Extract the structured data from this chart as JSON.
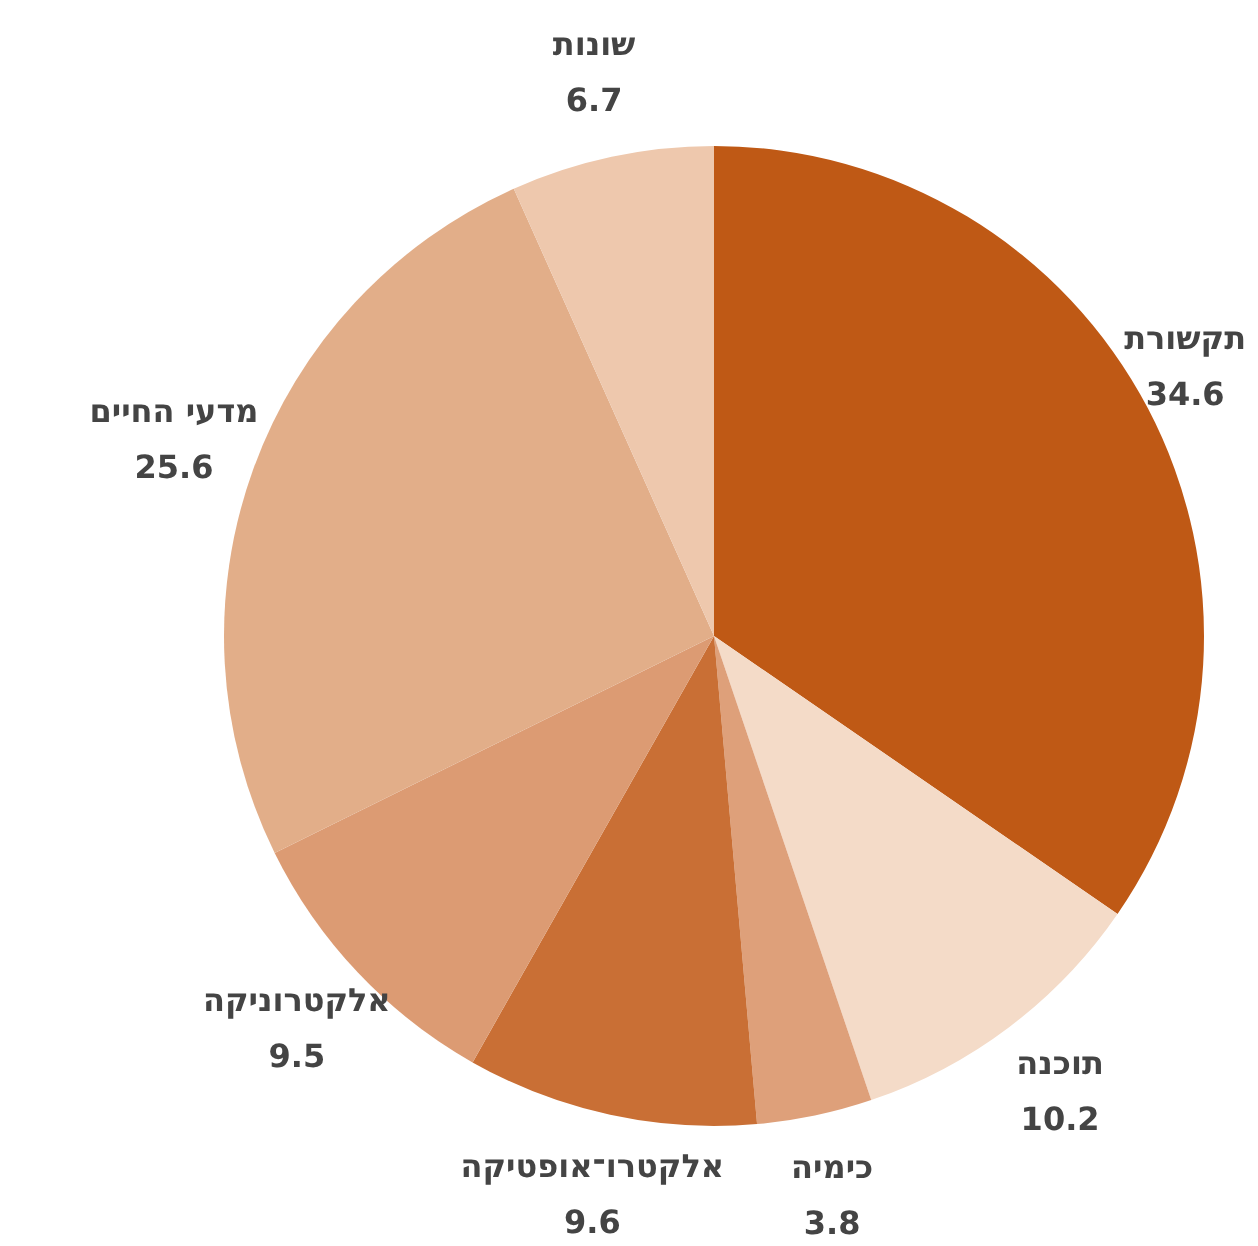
{
  "chart_data": {
    "type": "pie",
    "categories": [
      "תקשורת",
      "תוכנה",
      "כימיה",
      "אלקטרו־אופטיקה",
      "אלקטרוניקה",
      "מדעי החיים",
      "שונות"
    ],
    "values": [
      34.6,
      10.2,
      3.8,
      9.6,
      9.5,
      25.6,
      6.7
    ],
    "colors": [
      "#bf5915",
      "#f4dbc8",
      "#dea07a",
      "#c96f35",
      "#dc9b73",
      "#e2ae89",
      "#eec8ad"
    ],
    "data_labels": true,
    "legend": false
  }
}
